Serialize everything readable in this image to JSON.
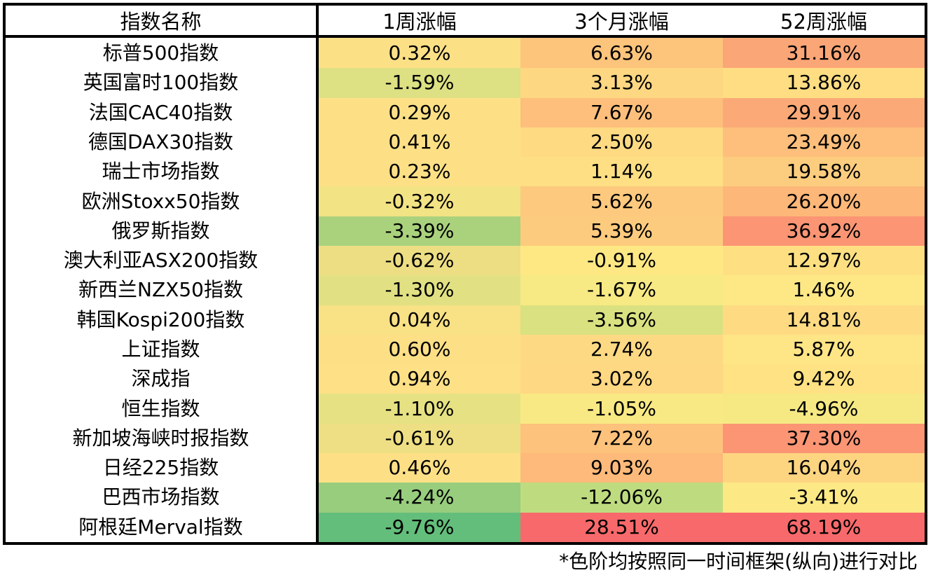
{
  "chart_data": {
    "type": "table",
    "columns": [
      "指数名称",
      "1周涨幅",
      "3个月涨幅",
      "52周涨幅"
    ],
    "rows": [
      {
        "name": "标普500指数",
        "values": [
          "0.32%",
          "6.63%",
          "31.16%"
        ],
        "colors": [
          "#fce086",
          "#fdc47c",
          "#fba677"
        ]
      },
      {
        "name": "英国富时100指数",
        "values": [
          "-1.59%",
          "3.13%",
          "13.86%"
        ],
        "colors": [
          "#dde083",
          "#fdd782",
          "#fedd83"
        ]
      },
      {
        "name": "法国CAC40指数",
        "values": [
          "0.29%",
          "7.67%",
          "29.91%"
        ],
        "colors": [
          "#fde086",
          "#fdbf7b",
          "#fbaa77"
        ]
      },
      {
        "name": "德国DAX30指数",
        "values": [
          "0.41%",
          "2.50%",
          "23.49%"
        ],
        "colors": [
          "#fde086",
          "#feda83",
          "#fdbf7b"
        ]
      },
      {
        "name": "瑞士市场指数",
        "values": [
          "0.23%",
          "1.14%",
          "19.58%"
        ],
        "colors": [
          "#fde086",
          "#fedf84",
          "#fdcd7f"
        ]
      },
      {
        "name": "欧洲Stoxx50指数",
        "values": [
          "-0.32%",
          "5.62%",
          "26.20%"
        ],
        "colors": [
          "#f2e384",
          "#fdc97e",
          "#fdb779"
        ]
      },
      {
        "name": "俄罗斯指数",
        "values": [
          "-3.39%",
          "5.39%",
          "36.92%"
        ],
        "colors": [
          "#aad27d",
          "#fdcb7e",
          "#fb9574"
        ]
      },
      {
        "name": "澳大利亚ASX200指数",
        "values": [
          "-0.62%",
          "-0.91%",
          "12.97%"
        ],
        "colors": [
          "#edde84",
          "#fee884",
          "#fee083"
        ]
      },
      {
        "name": "新西兰NZX50指数",
        "values": [
          "-1.30%",
          "-1.67%",
          "1.46%"
        ],
        "colors": [
          "#e1e183",
          "#f7e984",
          "#fee886"
        ]
      },
      {
        "name": "韩国Kospi200指数",
        "values": [
          "0.04%",
          "-3.56%",
          "14.81%"
        ],
        "colors": [
          "#f9e185",
          "#dae180",
          "#fedb83"
        ]
      },
      {
        "name": "上证指数",
        "values": [
          "0.60%",
          "2.74%",
          "5.87%"
        ],
        "colors": [
          "#fddf86",
          "#fed983",
          "#fee586"
        ]
      },
      {
        "name": "深成指",
        "values": [
          "0.94%",
          "3.02%",
          "9.42%"
        ],
        "colors": [
          "#fee086",
          "#fed883",
          "#fee283"
        ]
      },
      {
        "name": "恒生指数",
        "values": [
          "-1.10%",
          "-1.05%",
          "-4.96%"
        ],
        "colors": [
          "#e6e283",
          "#f9e984",
          "#f6e984"
        ]
      },
      {
        "name": "新加坡海峡时报指数",
        "values": [
          "-0.61%",
          "7.22%",
          "37.30%"
        ],
        "colors": [
          "#eedf84",
          "#fdc27c",
          "#fb9574"
        ]
      },
      {
        "name": "日经225指数",
        "values": [
          "0.46%",
          "9.03%",
          "16.04%"
        ],
        "colors": [
          "#fde086",
          "#fdba7a",
          "#fdd581"
        ]
      },
      {
        "name": "巴西市场指数",
        "values": [
          "-4.24%",
          "-12.06%",
          "-3.41%"
        ],
        "colors": [
          "#98cd7e",
          "#bedc7f",
          "#fce885"
        ]
      },
      {
        "name": "阿根廷Merval指数",
        "values": [
          "-9.76%",
          "28.51%",
          "68.19%"
        ],
        "colors": [
          "#63be7b",
          "#f8696b",
          "#f8696b"
        ]
      }
    ]
  },
  "footnote": "*色阶均按照同一时间框架(纵向)进行对比"
}
